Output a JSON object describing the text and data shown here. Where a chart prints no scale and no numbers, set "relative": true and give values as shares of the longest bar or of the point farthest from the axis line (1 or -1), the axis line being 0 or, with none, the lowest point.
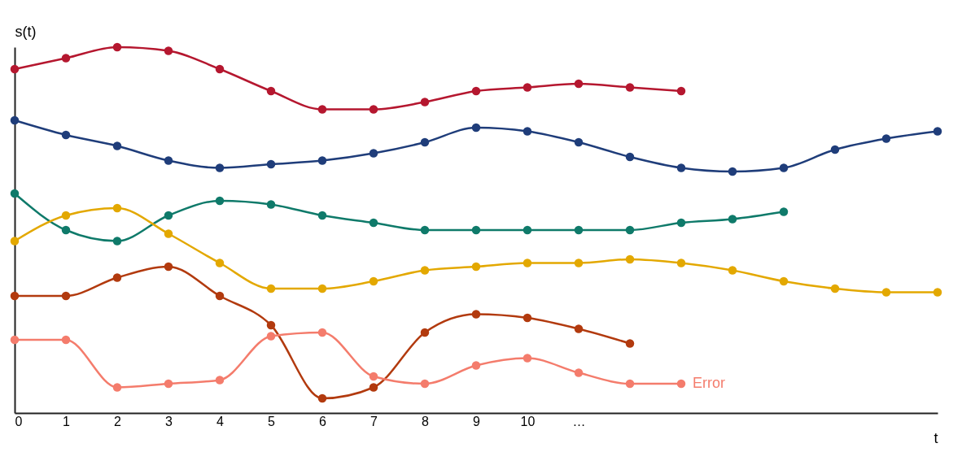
{
  "chart_data": {
    "type": "line",
    "relative": true,
    "xlabel": "t",
    "ylabel": "s(t)",
    "categories": [
      "0",
      "1",
      "2",
      "3",
      "4",
      "5",
      "6",
      "7",
      "8",
      "9",
      "10",
      "…",
      null,
      null,
      null,
      null,
      null,
      null,
      null
    ],
    "series": [
      {
        "color": "#b5172f",
        "values": [
          0.94,
          0.97,
          1.0,
          0.99,
          0.94,
          0.88,
          0.83,
          0.83,
          0.85,
          0.88,
          0.89,
          0.9,
          0.89,
          0.88,
          null,
          null,
          null,
          null,
          null
        ]
      },
      {
        "color": "#1f3d7a",
        "values": [
          0.8,
          0.76,
          0.73,
          0.69,
          0.67,
          0.68,
          0.69,
          0.71,
          0.74,
          0.78,
          0.77,
          0.74,
          0.7,
          0.67,
          0.66,
          0.67,
          0.72,
          0.75,
          0.77
        ]
      },
      {
        "color": "#0f7a6a",
        "values": [
          0.6,
          0.5,
          0.47,
          0.54,
          0.58,
          0.57,
          0.54,
          0.52,
          0.5,
          0.5,
          0.5,
          0.5,
          0.5,
          0.52,
          0.53,
          0.55,
          null,
          null,
          null
        ]
      },
      {
        "color": "#e3a800",
        "values": [
          0.47,
          0.54,
          0.56,
          0.49,
          0.41,
          0.34,
          0.34,
          0.36,
          0.39,
          0.4,
          0.41,
          0.41,
          0.42,
          0.41,
          0.39,
          0.36,
          0.34,
          0.33,
          0.33
        ]
      },
      {
        "color": "#b23a0e",
        "values": [
          0.32,
          0.32,
          0.37,
          0.4,
          0.32,
          0.24,
          0.04,
          0.07,
          0.22,
          0.27,
          0.26,
          0.23,
          0.19,
          null,
          null,
          null,
          null,
          null,
          null
        ]
      },
      {
        "color": "#f47c6c",
        "values": [
          0.2,
          0.2,
          0.07,
          0.08,
          0.09,
          0.21,
          0.22,
          0.1,
          0.08,
          0.13,
          0.15,
          0.11,
          0.08,
          0.08,
          null,
          null,
          null,
          null,
          null
        ]
      }
    ],
    "annotations": [
      "Error"
    ],
    "marker": "circle",
    "line_style": "solid",
    "grid": false
  }
}
